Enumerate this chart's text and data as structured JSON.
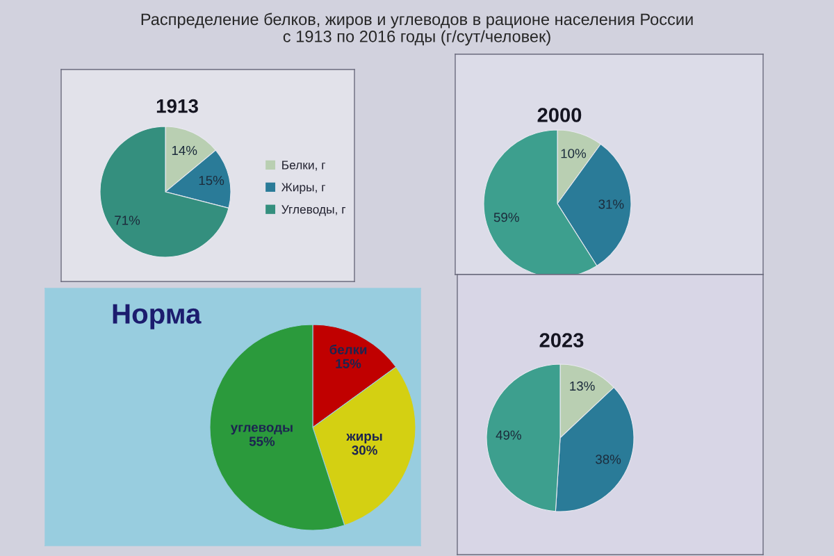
{
  "chart_data": [
    {
      "type": "other",
      "title": "Распределение белков, жиров и углеводов в рационе населения России\nс 1913 по 2016 годы (г/сут/человек)"
    },
    {
      "type": "pie",
      "title": "1913",
      "categories": [
        "Белки, г",
        "Жиры, г",
        "Углеводы, г"
      ],
      "values": [
        14,
        15,
        71
      ],
      "value_labels": [
        "14%",
        "15%",
        "71%"
      ],
      "colors": [
        "#b9cfb2",
        "#2a7b98",
        "#348f7e"
      ],
      "legend": "right"
    },
    {
      "type": "pie",
      "title": "2000",
      "categories": [
        null,
        null,
        null
      ],
      "values": [
        10,
        31,
        59
      ],
      "value_labels": [
        "10%",
        "31%",
        "59%"
      ],
      "colors": [
        "#b9cfb2",
        "#2a7b98",
        "#3d9f8e"
      ]
    },
    {
      "type": "pie",
      "title": "Норма",
      "categories": [
        "белки",
        "жиры",
        "углеводы"
      ],
      "values": [
        15,
        30,
        55
      ],
      "value_labels": [
        "15%",
        "30%",
        "55%"
      ],
      "colors": [
        "#c00000",
        "#d4d012",
        "#2b9a3c"
      ]
    },
    {
      "type": "pie",
      "title": "2023",
      "categories": [
        null,
        null,
        null
      ],
      "values": [
        13,
        38,
        49
      ],
      "value_labels": [
        "13%",
        "38%",
        "49%"
      ],
      "colors": [
        "#b9cfb2",
        "#2a7b98",
        "#3d9f8e"
      ]
    }
  ]
}
